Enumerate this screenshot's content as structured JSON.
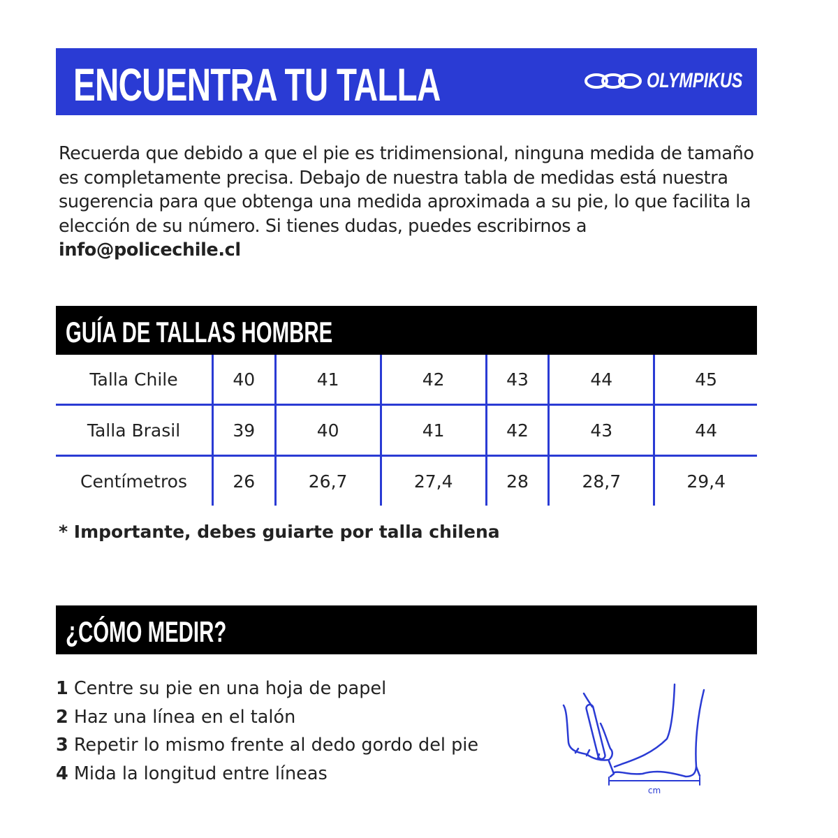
{
  "header": {
    "title": "ENCUENTRA TU TALLA",
    "brand": "OLYMPIKUS",
    "color": "#2a3bd4"
  },
  "intro": {
    "text": "Recuerda que debido a que el pie es tridimensional, ninguna medida de tamaño es completamente precisa. Debajo de nuestra tabla de medidas está nuestra sugerencia para que obtenga una medida aproximada a su pie, lo que facilita la elección de su número. Si tienes dudas, puedes escribirnos a ",
    "email": "info@policechile.cl"
  },
  "size_guide": {
    "title": "GUÍA DE TALLAS HOMBRE",
    "rows": [
      {
        "label": "Talla Chile",
        "values": [
          "40",
          "41",
          "42",
          "43",
          "44",
          "45"
        ]
      },
      {
        "label": "Talla Brasil",
        "values": [
          "39",
          "40",
          "41",
          "42",
          "43",
          "44"
        ]
      },
      {
        "label": "Centímetros",
        "values": [
          "26",
          "26,7",
          "27,4",
          "28",
          "28,7",
          "29,4"
        ]
      }
    ],
    "note": "* Importante, debes guiarte por talla chilena"
  },
  "how_to": {
    "title": "¿CÓMO MEDIR?",
    "steps": [
      {
        "num": "1",
        "text": " Centre su pie en una hoja de papel"
      },
      {
        "num": "2",
        "text": " Haz una línea en el talón"
      },
      {
        "num": "3",
        "text": " Repetir lo mismo frente al dedo gordo del pie"
      },
      {
        "num": "4",
        "text": " Mida la longitud entre líneas"
      }
    ],
    "illustration_label": "cm"
  }
}
